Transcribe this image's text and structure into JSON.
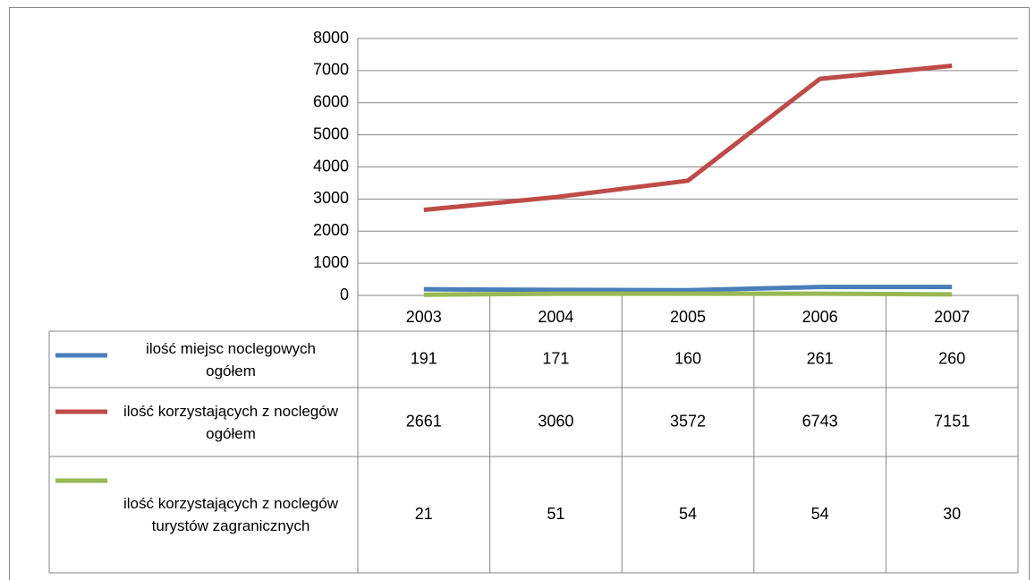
{
  "chart_data": {
    "type": "line",
    "categories": [
      "2003",
      "2004",
      "2005",
      "2006",
      "2007"
    ],
    "series": [
      {
        "name": "ilość miejsc noclegowych ogółem",
        "color": "#4a7ebb",
        "values": [
          191,
          171,
          160,
          261,
          260
        ]
      },
      {
        "name": "ilość korzystających z noclegów ogółem",
        "color": "#be4b48",
        "values": [
          2661,
          3060,
          3572,
          6743,
          7151
        ]
      },
      {
        "name": "ilość korzystających z noclegów turystów zagranicznych",
        "color": "#98b954",
        "values": [
          21,
          51,
          54,
          54,
          30
        ]
      }
    ],
    "ylim": [
      0,
      8000
    ],
    "yticks": [
      0,
      1000,
      2000,
      3000,
      4000,
      5000,
      6000,
      7000,
      8000
    ],
    "grid": true
  }
}
